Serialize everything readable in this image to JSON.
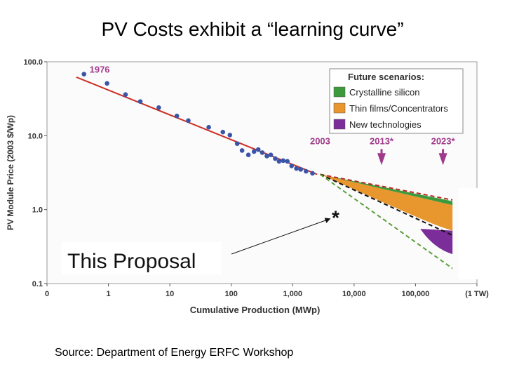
{
  "slide": {
    "title": "PV  Costs exhibit a  “learning curve”",
    "source": "Source:  Department of Energy ERFC Workshop"
  },
  "chart_data": {
    "type": "scatter",
    "xlabel": "Cumulative Production (MWp)",
    "ylabel": "PV Module Price (2003 $/Wp)",
    "x_scale": "log",
    "y_scale": "log",
    "x_ticks": [
      {
        "value": 0.1,
        "label": "0"
      },
      {
        "value": 1,
        "label": "1"
      },
      {
        "value": 10,
        "label": "10"
      },
      {
        "value": 100,
        "label": "100"
      },
      {
        "value": 1000,
        "label": "1,000"
      },
      {
        "value": 10000,
        "label": "10,000"
      },
      {
        "value": 100000,
        "label": "100,000"
      },
      {
        "value": 1000000,
        "label": "(1 TW)"
      }
    ],
    "y_ticks": [
      {
        "value": 100,
        "label": "100.0"
      },
      {
        "value": 10,
        "label": "10.0"
      },
      {
        "value": 1,
        "label": "1.0"
      },
      {
        "value": 0.1,
        "label": "0.1"
      }
    ],
    "xlim": [
      0.1,
      1000000
    ],
    "ylim": [
      0.1,
      100
    ],
    "points": [
      {
        "x": 0.4,
        "y": 68
      },
      {
        "x": 0.95,
        "y": 51
      },
      {
        "x": 1.9,
        "y": 36
      },
      {
        "x": 3.3,
        "y": 29
      },
      {
        "x": 6.6,
        "y": 24
      },
      {
        "x": 13,
        "y": 18.5
      },
      {
        "x": 20,
        "y": 16
      },
      {
        "x": 43,
        "y": 13
      },
      {
        "x": 73,
        "y": 11.2
      },
      {
        "x": 95,
        "y": 10.2
      },
      {
        "x": 125,
        "y": 7.8
      },
      {
        "x": 150,
        "y": 6.3
      },
      {
        "x": 190,
        "y": 5.5
      },
      {
        "x": 235,
        "y": 6.1
      },
      {
        "x": 275,
        "y": 6.5
      },
      {
        "x": 320,
        "y": 5.9
      },
      {
        "x": 380,
        "y": 5.3
      },
      {
        "x": 440,
        "y": 5.5
      },
      {
        "x": 520,
        "y": 4.9
      },
      {
        "x": 600,
        "y": 4.5
      },
      {
        "x": 700,
        "y": 4.6
      },
      {
        "x": 820,
        "y": 4.5
      },
      {
        "x": 960,
        "y": 3.9
      },
      {
        "x": 1150,
        "y": 3.6
      },
      {
        "x": 1350,
        "y": 3.5
      },
      {
        "x": 1650,
        "y": 3.3
      },
      {
        "x": 2100,
        "y": 3.1
      }
    ],
    "trend_line": [
      {
        "x": 0.3,
        "y": 62
      },
      {
        "x": 2500,
        "y": 3.0
      }
    ],
    "labels": {
      "start_year": "1976",
      "y2003": "2003",
      "y2013": "2013*",
      "y2023": "2023*",
      "proposal": "This Proposal",
      "asterisk": "*"
    },
    "marker_years": [
      {
        "x": 2800,
        "key": "y2003",
        "arrow": false
      },
      {
        "x": 28000,
        "key": "y2013",
        "arrow": true
      },
      {
        "x": 280000,
        "key": "y2023",
        "arrow": true
      }
    ],
    "proposal_point": {
      "x": 5000,
      "y": 0.82
    },
    "scenario_bands": {
      "fork": {
        "x": 2800,
        "y": 3.0
      },
      "end_x": 400000,
      "crystalline_upper": 1.3,
      "crystalline_lower": 1.15,
      "thin_lower_mid": 0.62,
      "thin_lower_end": 0.52,
      "new_tech_lower": 0.25,
      "dashed_red_end": 1.35,
      "dashed_black_end": 0.45,
      "dashed_green_end": 0.16
    },
    "legend": {
      "title": "Future scenarios:",
      "placement": "top-right",
      "items": [
        {
          "label": "Crystalline silicon",
          "color": "#3c9a3c"
        },
        {
          "label": "Thin films/Concentrators",
          "color": "#e8962e"
        },
        {
          "label": "New technologies",
          "color": "#7b2d9a"
        }
      ]
    },
    "colors": {
      "points": "#3a55a8",
      "trend": "#cc2f25",
      "year_label": "#a03a8a",
      "arrow": "#a03a8a",
      "red_dash": "#b82a25",
      "green_dash": "#5c9e3a",
      "black_dash": "#111111"
    }
  }
}
